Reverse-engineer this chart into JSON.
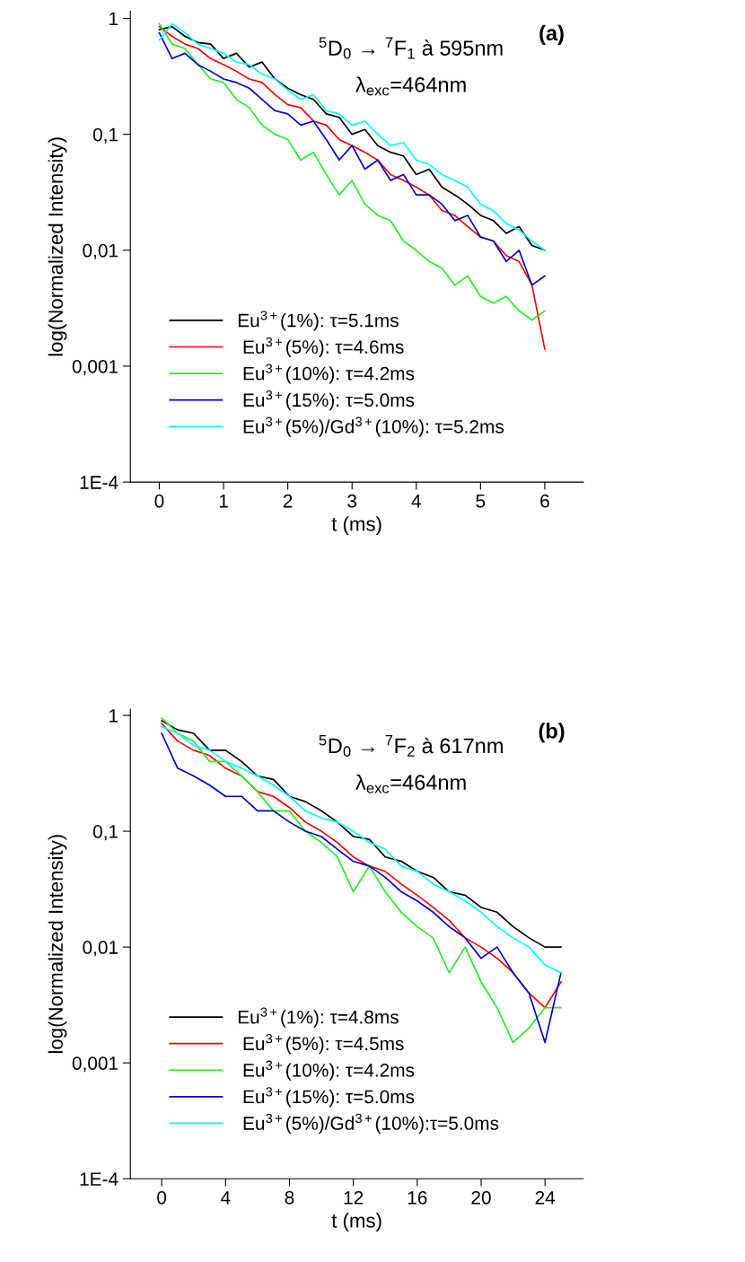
{
  "chart_data": [
    {
      "type": "line",
      "xlabel": "t (ms)",
      "ylabel": "log(Normalized Intensity)",
      "annotations": [
        "$^{5}$D$_{0}$ → $^{7}$F$_{1}$ à 595nm",
        "λ$_{exc}$=464nm",
        "(a)"
      ],
      "x": [
        0,
        0.2,
        0.4,
        0.6,
        0.8,
        1.0,
        1.2,
        1.4,
        1.6,
        1.8,
        2.0,
        2.2,
        2.4,
        2.6,
        2.8,
        3.0,
        3.2,
        3.4,
        3.6,
        3.8,
        4.0,
        4.2,
        4.4,
        4.6,
        4.8,
        5.0,
        5.2,
        5.4,
        5.6,
        5.8,
        6.0
      ],
      "log": "y",
      "xlim": [
        -0.45,
        6.6
      ],
      "ylim": [
        0.0001,
        1.15
      ],
      "xticks": [
        0,
        1,
        2,
        3,
        4,
        5,
        6
      ],
      "yticks": [
        {
          "value": 0.0001,
          "label": "1E-4"
        },
        {
          "value": 0.001,
          "label": "0,001"
        },
        {
          "value": 0.01,
          "label": "0,01"
        },
        {
          "value": 0.1,
          "label": "0,1"
        },
        {
          "value": 1,
          "label": "1"
        }
      ],
      "legend": "lower left",
      "grid": false,
      "series": [
        {
          "name": "Eu$^{3+}$(1%): τ=5.1ms",
          "color": "#000000",
          "values": [
            0.8,
            0.85,
            0.7,
            0.62,
            0.6,
            0.45,
            0.5,
            0.38,
            0.42,
            0.3,
            0.25,
            0.22,
            0.2,
            0.15,
            0.14,
            0.1,
            0.11,
            0.08,
            0.07,
            0.065,
            0.045,
            0.05,
            0.035,
            0.03,
            0.025,
            0.02,
            0.018,
            0.014,
            0.016,
            0.011,
            0.01
          ]
        },
        {
          "name": " Eu$^{3+}$(5%): τ=4.6ms",
          "color": "#ff0000",
          "values": [
            0.85,
            0.7,
            0.6,
            0.55,
            0.45,
            0.4,
            0.35,
            0.3,
            0.28,
            0.22,
            0.18,
            0.17,
            0.13,
            0.12,
            0.09,
            0.08,
            0.07,
            0.06,
            0.045,
            0.04,
            0.035,
            0.03,
            0.022,
            0.02,
            0.016,
            0.013,
            0.012,
            0.009,
            0.008,
            0.005,
            0.0014
          ]
        },
        {
          "name": " Eu$^{3+}$(10%): τ=4.2ms",
          "color": "#22ee22",
          "values": [
            0.9,
            0.6,
            0.55,
            0.4,
            0.3,
            0.28,
            0.2,
            0.17,
            0.12,
            0.1,
            0.09,
            0.06,
            0.07,
            0.045,
            0.03,
            0.04,
            0.025,
            0.02,
            0.018,
            0.012,
            0.01,
            0.008,
            0.007,
            0.005,
            0.006,
            0.004,
            0.0035,
            0.004,
            0.003,
            0.0025,
            0.003
          ]
        },
        {
          "name": " Eu$^{3+}$(15%): τ=5.0ms",
          "color": "#0000cc",
          "values": [
            0.75,
            0.45,
            0.5,
            0.4,
            0.35,
            0.3,
            0.28,
            0.25,
            0.2,
            0.16,
            0.15,
            0.12,
            0.13,
            0.09,
            0.06,
            0.08,
            0.05,
            0.06,
            0.04,
            0.045,
            0.03,
            0.03,
            0.025,
            0.018,
            0.02,
            0.013,
            0.012,
            0.008,
            0.01,
            0.005,
            0.006
          ]
        },
        {
          "name": " Eu$^{3+}$(5%)/Gd$^{3+}$(10%): τ=5.2ms",
          "color": "#00ffff",
          "values": [
            0.65,
            0.9,
            0.75,
            0.6,
            0.55,
            0.5,
            0.42,
            0.4,
            0.33,
            0.3,
            0.24,
            0.2,
            0.22,
            0.16,
            0.15,
            0.12,
            0.13,
            0.1,
            0.08,
            0.085,
            0.06,
            0.055,
            0.045,
            0.04,
            0.035,
            0.025,
            0.022,
            0.017,
            0.015,
            0.012,
            0.01
          ]
        }
      ]
    },
    {
      "type": "line",
      "xlabel": "t (ms)",
      "ylabel": "log(Normalized Intensity)",
      "annotations": [
        "$^{5}$D$_{0}$ → $^{7}$F$_{2}$ à 617nm",
        "λ$_{exc}$=464nm",
        "(b)"
      ],
      "x": [
        0,
        1,
        2,
        3,
        4,
        5,
        6,
        7,
        8,
        9,
        10,
        11,
        12,
        13,
        14,
        15,
        16,
        17,
        18,
        19,
        20,
        21,
        22,
        23,
        24,
        25
      ],
      "log": "y",
      "xlim": [
        -1.96,
        26.4
      ],
      "ylim": [
        0.0001,
        1.13
      ],
      "xticks": [
        0,
        4,
        8,
        12,
        16,
        20,
        24
      ],
      "yticks": [
        {
          "value": 0.0001,
          "label": "1E-4"
        },
        {
          "value": 0.001,
          "label": "0,001"
        },
        {
          "value": 0.01,
          "label": "0,01"
        },
        {
          "value": 0.1,
          "label": "0,1"
        },
        {
          "value": 1,
          "label": "1"
        }
      ],
      "legend": "lower left",
      "grid": false,
      "series": [
        {
          "name": "Eu$^{3+}$(1%): τ=4.8ms",
          "color": "#000000",
          "values": [
            0.9,
            0.75,
            0.7,
            0.5,
            0.5,
            0.4,
            0.3,
            0.28,
            0.2,
            0.18,
            0.15,
            0.12,
            0.09,
            0.085,
            0.06,
            0.055,
            0.045,
            0.04,
            0.03,
            0.028,
            0.022,
            0.02,
            0.015,
            0.012,
            0.01,
            0.01
          ]
        },
        {
          "name": " Eu$^{3+}$(5%): τ=4.5ms",
          "color": "#ff0000",
          "values": [
            0.85,
            0.6,
            0.5,
            0.45,
            0.35,
            0.3,
            0.22,
            0.2,
            0.16,
            0.12,
            0.1,
            0.08,
            0.06,
            0.05,
            0.045,
            0.035,
            0.028,
            0.022,
            0.017,
            0.012,
            0.01,
            0.008,
            0.006,
            0.004,
            0.003,
            0.005
          ]
        },
        {
          "name": " Eu$^{3+}$(10%): τ=4.2ms",
          "color": "#22ee22",
          "values": [
            0.95,
            0.7,
            0.6,
            0.4,
            0.4,
            0.3,
            0.22,
            0.15,
            0.15,
            0.1,
            0.08,
            0.06,
            0.03,
            0.05,
            0.03,
            0.02,
            0.015,
            0.012,
            0.006,
            0.01,
            0.005,
            0.003,
            0.0015,
            0.002,
            0.003,
            0.003
          ]
        },
        {
          "name": " Eu$^{3+}$(15%): τ=5.0ms",
          "color": "#0000cc",
          "values": [
            0.7,
            0.35,
            0.3,
            0.25,
            0.2,
            0.2,
            0.15,
            0.15,
            0.12,
            0.1,
            0.09,
            0.07,
            0.055,
            0.05,
            0.04,
            0.03,
            0.025,
            0.02,
            0.015,
            0.012,
            0.008,
            0.01,
            0.006,
            0.004,
            0.0015,
            0.006
          ]
        },
        {
          "name": " Eu$^{3+}$(5%)/Gd$^{3+}$(10%):τ=5.0ms",
          "color": "#00ffff",
          "values": [
            0.8,
            0.7,
            0.55,
            0.5,
            0.4,
            0.35,
            0.3,
            0.25,
            0.2,
            0.15,
            0.13,
            0.12,
            0.1,
            0.08,
            0.07,
            0.05,
            0.045,
            0.035,
            0.03,
            0.025,
            0.02,
            0.015,
            0.012,
            0.01,
            0.007,
            0.006
          ]
        }
      ]
    }
  ]
}
